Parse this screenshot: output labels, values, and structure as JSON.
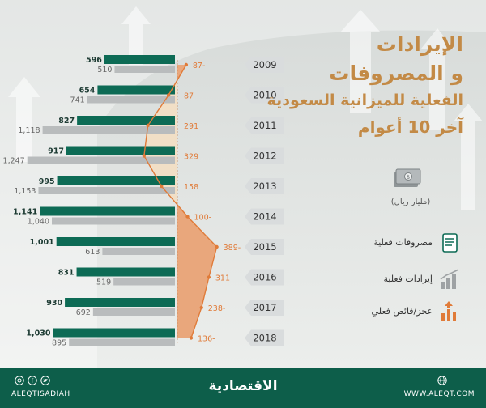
{
  "title": {
    "line1": "الإيرادات",
    "line2": "و المصروفات",
    "line3": "الفعلية للميزانية السعودية",
    "line4": "آخر 10 أعوام"
  },
  "unit": "(مليار ريال)",
  "legend": [
    {
      "label": "مصروفات فعلية",
      "icon": "expenses-document-icon",
      "color": "#0d6b55"
    },
    {
      "label": "إيرادات فعلية",
      "icon": "revenue-bars-icon",
      "color": "#9ea2a4"
    },
    {
      "label": "عجز/فائض فعلي",
      "icon": "deficit-surplus-icon",
      "color": "#e07b39"
    }
  ],
  "footer": {
    "brand": "الاقتصادية",
    "handle": "ALEQTISADIAH",
    "site": "WWW.ALEQT.COM"
  },
  "colors": {
    "expenses": "#0d6b55",
    "revenue": "#b9bcbd",
    "balance": "#e07b39",
    "surplus_fill": "#f1dfc6",
    "deficit_fill": "#e9a77c",
    "year_tab": "#d9dcdd"
  },
  "chart_data": {
    "type": "bar",
    "categories": [
      "2009",
      "2010",
      "2011",
      "2012",
      "2013",
      "2014",
      "2015",
      "2016",
      "2017",
      "2018"
    ],
    "series": [
      {
        "name": "مصروفات فعلية",
        "values": [
          596,
          654,
          827,
          917,
          995,
          1141,
          1001,
          831,
          930,
          1030
        ]
      },
      {
        "name": "إيرادات فعلية",
        "values": [
          510,
          741,
          1118,
          1247,
          1153,
          1040,
          613,
          519,
          692,
          895
        ]
      },
      {
        "name": "عجز/فائض فعلي",
        "values": [
          -87,
          87,
          291,
          329,
          158,
          -100,
          -389,
          -311,
          -238,
          -136
        ]
      }
    ],
    "value_labels": {
      "expenses": [
        "596",
        "654",
        "827",
        "917",
        "995",
        "1,141",
        "1,001",
        "831",
        "930",
        "1,030"
      ],
      "revenue": [
        "510",
        "741",
        "1,118",
        "1,247",
        "1,153",
        "1,040",
        "613",
        "519",
        "692",
        "895"
      ],
      "balance": [
        "87-",
        "87",
        "291",
        "329",
        "158",
        "100-",
        "389-",
        "311-",
        "238-",
        "136-"
      ]
    },
    "unit": "مليار ريال"
  }
}
